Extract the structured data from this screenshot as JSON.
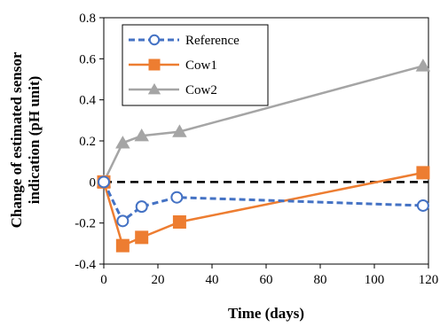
{
  "chart_data": {
    "type": "line",
    "title": "",
    "xlabel": "Time (days)",
    "ylabel_lines": [
      "Change of estimated sensor",
      "indication (pH unit)"
    ],
    "xlim": [
      0,
      120
    ],
    "ylim": [
      -0.4,
      0.8
    ],
    "xticks": [
      0,
      20,
      40,
      60,
      80,
      100,
      120
    ],
    "yticks": [
      -0.4,
      -0.2,
      0,
      0.2,
      0.4,
      0.6,
      0.8
    ],
    "xtick_labels": [
      "0",
      "20",
      "40",
      "60",
      "80",
      "100",
      "120"
    ],
    "ytick_labels": [
      "-0.4",
      "-0.2",
      "0",
      "0.2",
      "0.4",
      "0.6",
      "0.8"
    ],
    "grid": false,
    "reference_line": {
      "y": 0,
      "style": "dashed",
      "color": "#000000"
    },
    "legend_position": "top-left",
    "series": [
      {
        "name": "Reference",
        "color": "#4472C4",
        "line_style": "dashed",
        "marker": "circle-open",
        "x": [
          0,
          7,
          14,
          27,
          118
        ],
        "y": [
          0.0,
          -0.19,
          -0.12,
          -0.075,
          -0.115
        ]
      },
      {
        "name": "Cow1",
        "color": "#ED7D31",
        "line_style": "solid",
        "marker": "square",
        "x": [
          0,
          7,
          14,
          28,
          118
        ],
        "y": [
          0.0,
          -0.31,
          -0.27,
          -0.195,
          0.045
        ]
      },
      {
        "name": "Cow2",
        "color": "#A5A5A5",
        "line_style": "solid",
        "marker": "triangle",
        "x": [
          0,
          7,
          14,
          28,
          118
        ],
        "y": [
          0.0,
          0.19,
          0.225,
          0.245,
          0.565
        ]
      }
    ]
  }
}
